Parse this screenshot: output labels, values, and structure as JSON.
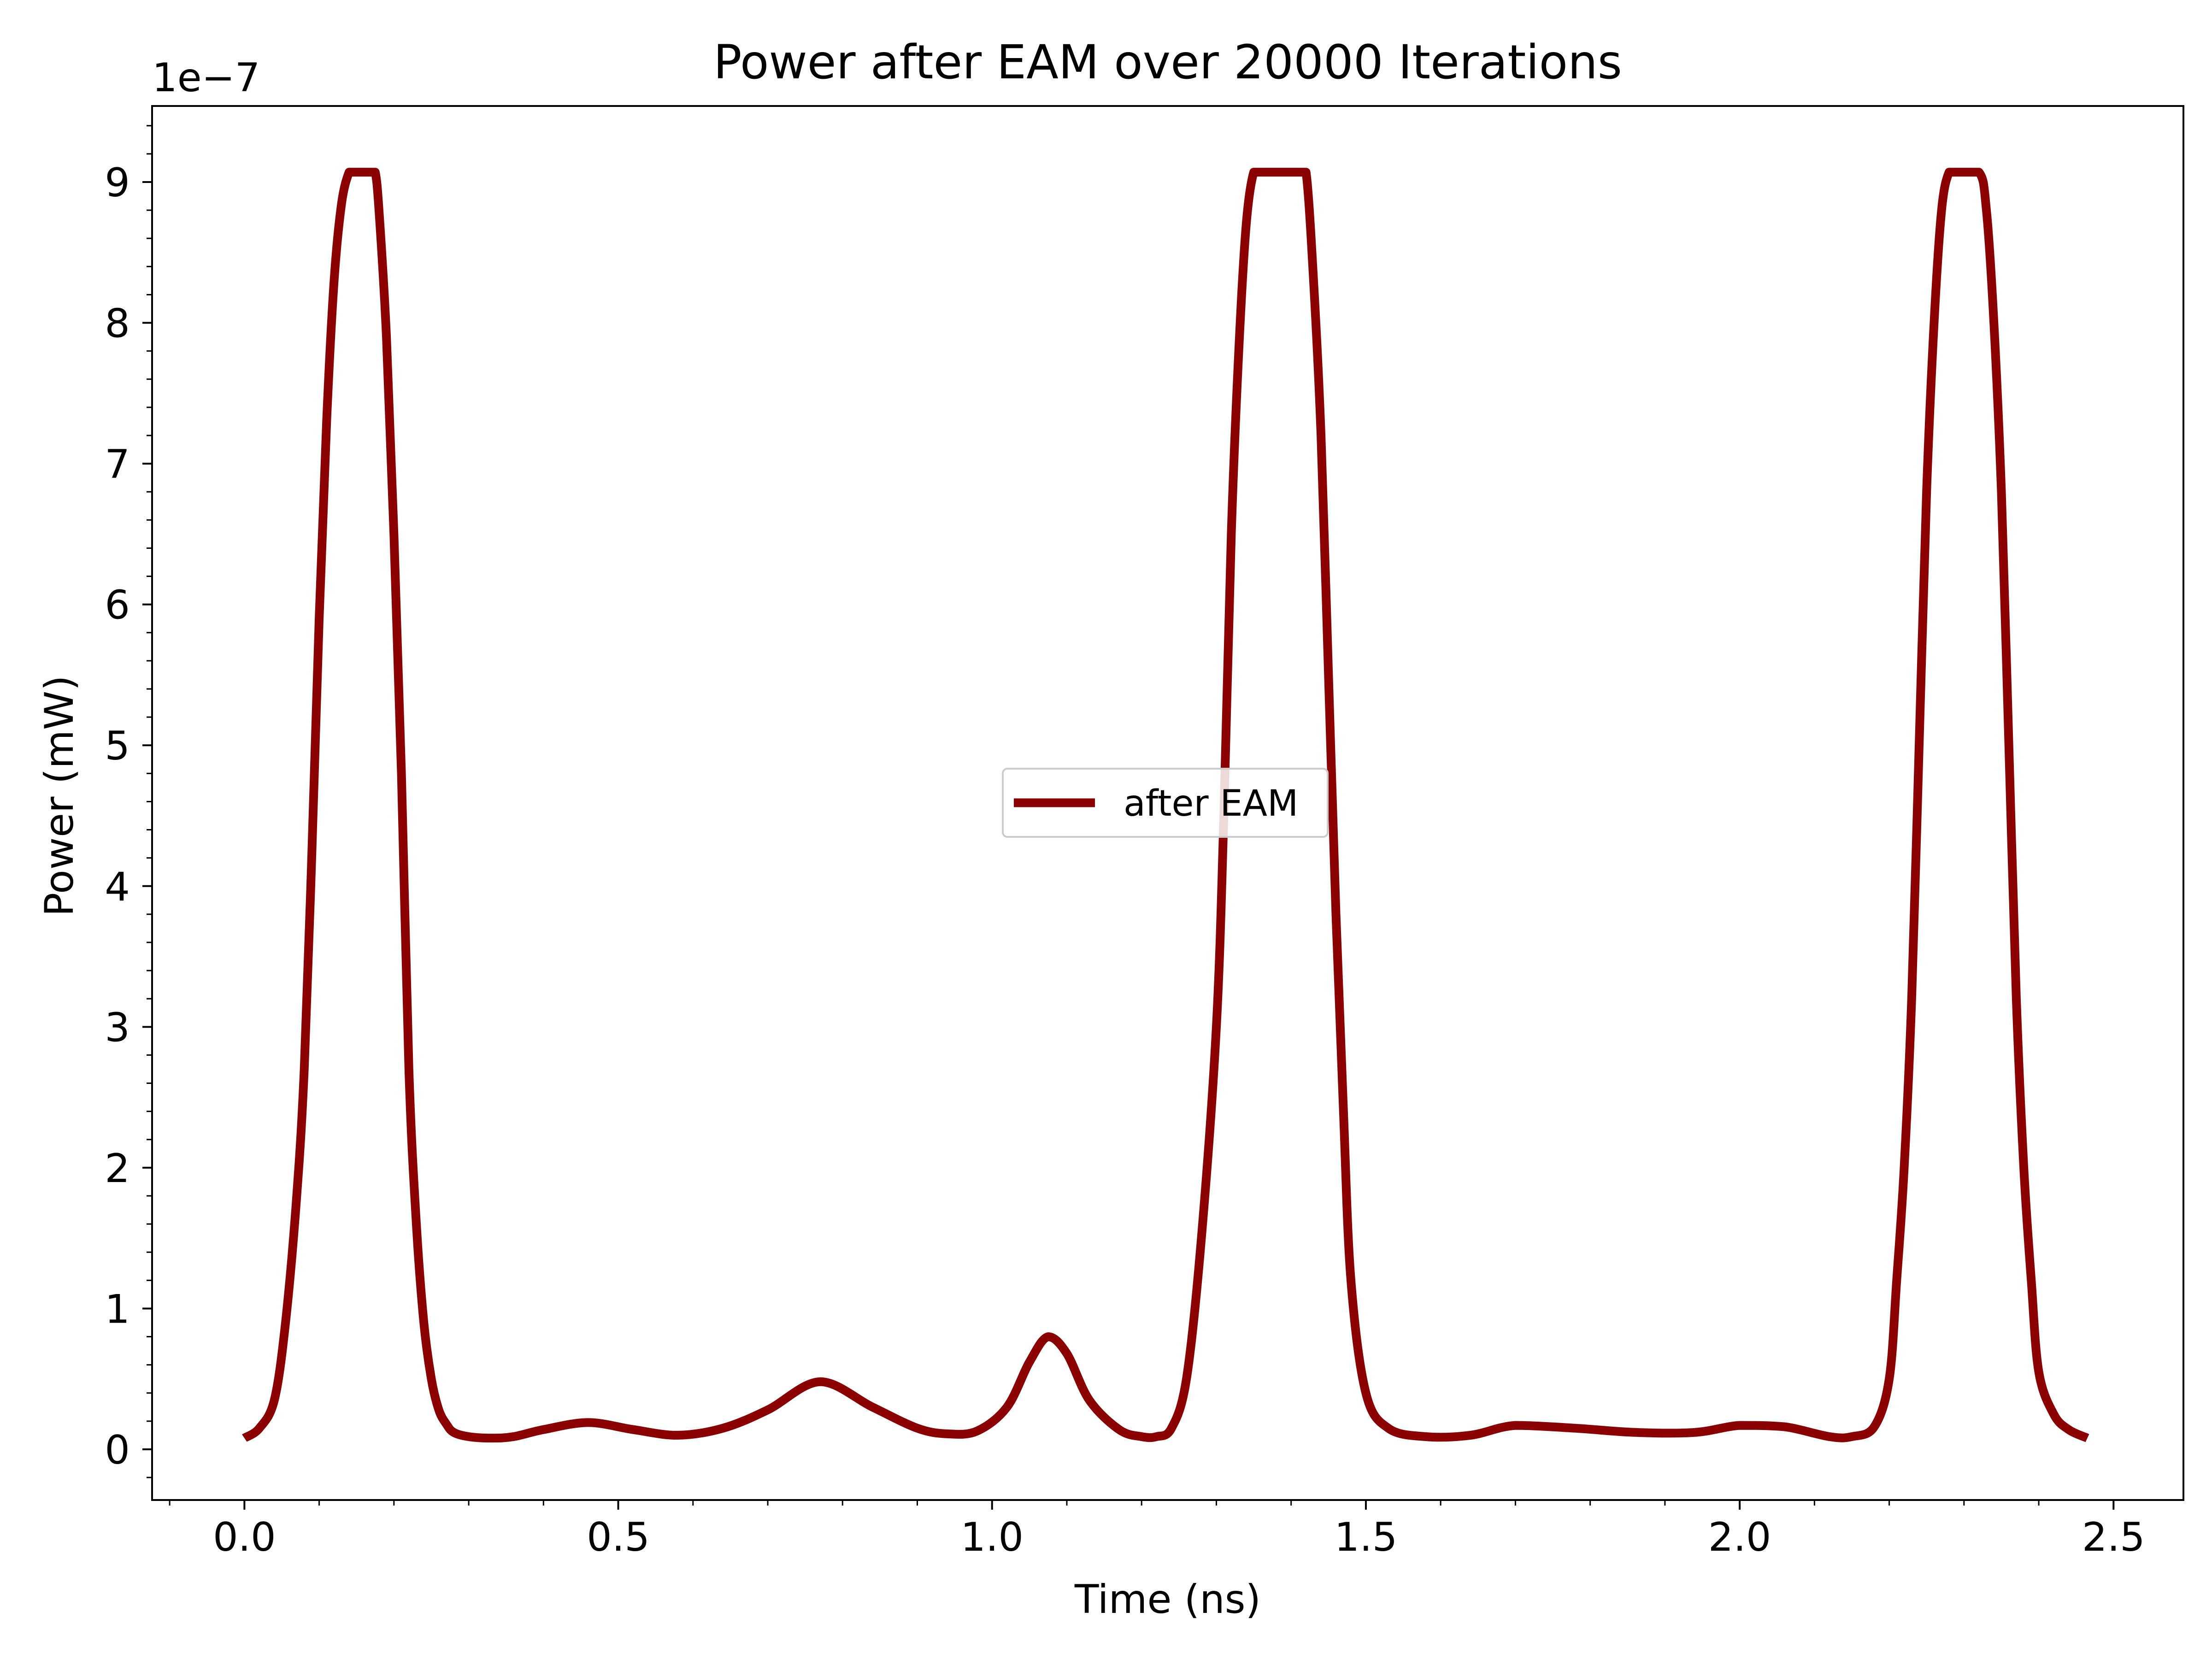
{
  "chart_data": {
    "type": "line",
    "title": "Power after EAM over 20000 Iterations",
    "xlabel": "Time (ns)",
    "ylabel": "Power (mW)",
    "y_offset_label": "1e−7",
    "y_scale_factor": 1e-07,
    "xlim": [
      -0.1235,
      2.5935
    ],
    "ylim": [
      -0.36,
      9.54
    ],
    "x_ticks": [
      0.0,
      0.5,
      1.0,
      1.5,
      2.0,
      2.5
    ],
    "x_tick_labels": [
      "0.0",
      "0.5",
      "1.0",
      "1.5",
      "2.0",
      "2.5"
    ],
    "y_ticks": [
      0,
      1,
      2,
      3,
      4,
      5,
      6,
      7,
      8,
      9
    ],
    "y_tick_labels": [
      "0",
      "1",
      "2",
      "3",
      "4",
      "5",
      "6",
      "7",
      "8",
      "9"
    ],
    "x_minor_step": 0.1,
    "y_minor_step": 0.2,
    "grid": false,
    "legend_position": "center",
    "series": [
      {
        "name": "after EAM",
        "color": "#8b0000",
        "x": [
          0.0,
          0.02,
          0.04,
          0.055,
          0.07,
          0.08,
          0.09,
          0.1,
          0.11,
          0.12,
          0.13,
          0.14,
          0.145,
          0.15,
          0.17,
          0.175,
          0.18,
          0.19,
          0.2,
          0.21,
          0.22,
          0.23,
          0.24,
          0.25,
          0.26,
          0.27,
          0.28,
          0.3,
          0.33,
          0.36,
          0.4,
          0.46,
          0.52,
          0.58,
          0.64,
          0.7,
          0.77,
          0.84,
          0.9,
          0.94,
          0.98,
          1.02,
          1.05,
          1.075,
          1.1,
          1.13,
          1.17,
          1.2,
          1.22,
          1.24,
          1.26,
          1.28,
          1.3,
          1.31,
          1.32,
          1.33,
          1.34,
          1.35,
          1.36,
          1.37,
          1.41,
          1.42,
          1.43,
          1.44,
          1.45,
          1.46,
          1.47,
          1.48,
          1.5,
          1.53,
          1.58,
          1.64,
          1.7,
          1.78,
          1.86,
          1.94,
          2.0,
          2.06,
          2.12,
          2.15,
          2.18,
          2.2,
          2.21,
          2.22,
          2.23,
          2.24,
          2.25,
          2.26,
          2.27,
          2.28,
          2.29,
          2.32,
          2.33,
          2.34,
          2.35,
          2.36,
          2.37,
          2.38,
          2.39,
          2.4,
          2.42,
          2.44,
          2.465
        ],
        "y": [
          0.08,
          0.15,
          0.35,
          0.9,
          1.8,
          2.7,
          4.2,
          5.9,
          7.3,
          8.3,
          8.85,
          9.07,
          9.07,
          9.07,
          9.07,
          9.07,
          8.8,
          7.9,
          6.5,
          4.8,
          2.7,
          1.6,
          0.9,
          0.5,
          0.28,
          0.18,
          0.12,
          0.09,
          0.08,
          0.09,
          0.14,
          0.19,
          0.14,
          0.1,
          0.15,
          0.28,
          0.48,
          0.3,
          0.15,
          0.11,
          0.13,
          0.3,
          0.62,
          0.8,
          0.68,
          0.35,
          0.14,
          0.09,
          0.09,
          0.15,
          0.5,
          1.5,
          3.0,
          4.5,
          6.5,
          7.8,
          8.7,
          9.07,
          9.07,
          9.07,
          9.07,
          9.07,
          8.3,
          7.2,
          5.5,
          3.8,
          2.4,
          1.2,
          0.4,
          0.15,
          0.09,
          0.1,
          0.17,
          0.15,
          0.12,
          0.12,
          0.17,
          0.16,
          0.09,
          0.09,
          0.16,
          0.5,
          1.2,
          2.0,
          3.2,
          5.0,
          6.8,
          8.0,
          8.8,
          9.07,
          9.07,
          9.07,
          8.8,
          8.0,
          6.8,
          5.0,
          3.2,
          2.0,
          1.2,
          0.55,
          0.25,
          0.14,
          0.08
        ]
      }
    ]
  }
}
